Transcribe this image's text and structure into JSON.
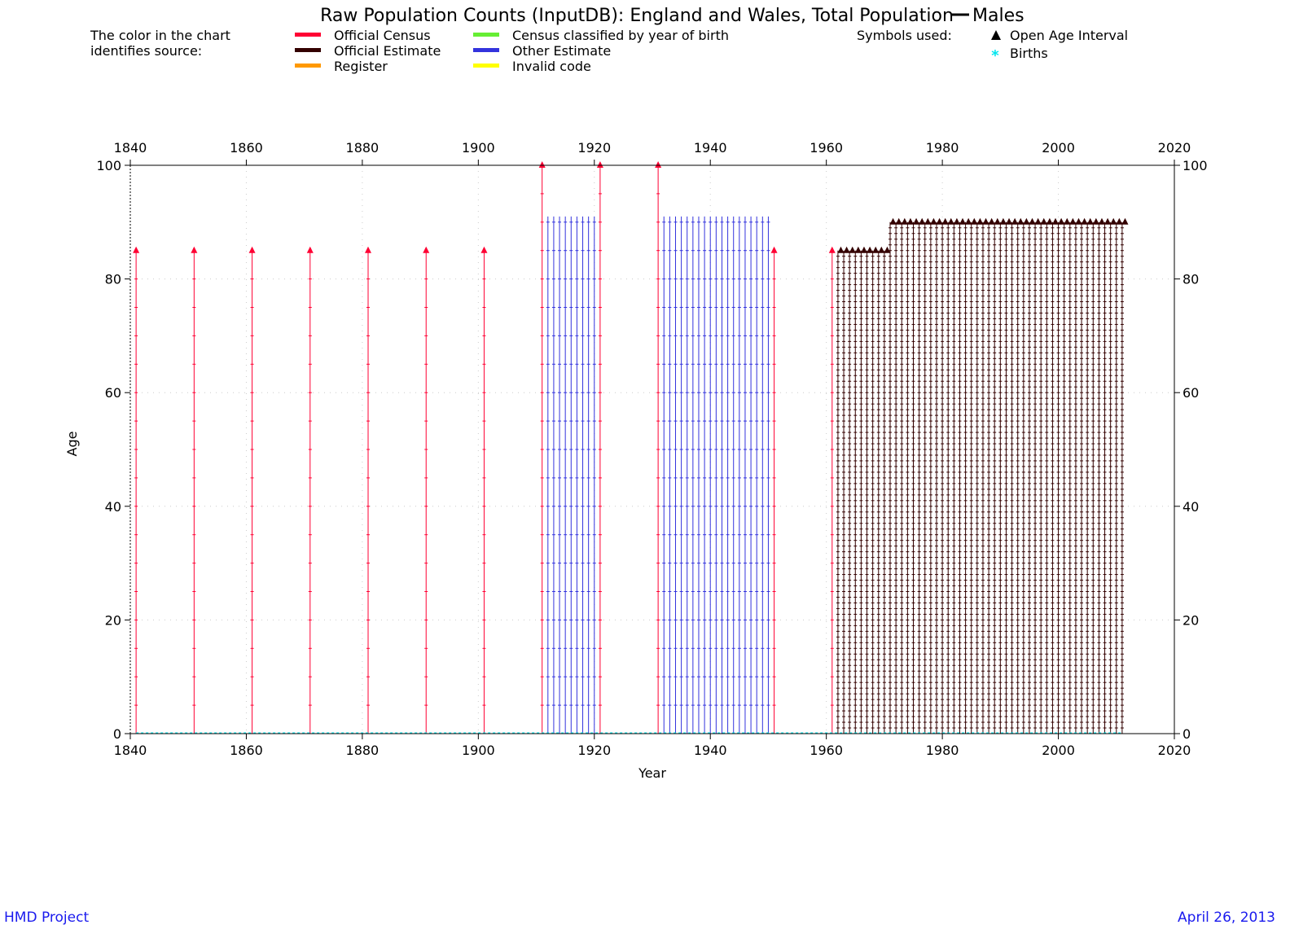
{
  "chart_data": {
    "type": "scatter",
    "title": "Raw Population Counts (InputDB): England and Wales, Total Population",
    "title_sex": "Males",
    "xlabel": "Year",
    "ylabel": "Age",
    "xlim": [
      1840,
      2020
    ],
    "ylim": [
      0,
      100
    ],
    "xticks": [
      1840,
      1860,
      1880,
      1900,
      1920,
      1940,
      1960,
      1980,
      2000,
      2020
    ],
    "yticks": [
      0,
      20,
      40,
      60,
      80,
      100
    ],
    "legend": {
      "heading": [
        "The color in the chart",
        "identifies source:"
      ],
      "sources": [
        {
          "label": "Official Census",
          "color": "#ff0033"
        },
        {
          "label": "Official Estimate",
          "color": "#330000"
        },
        {
          "label": "Register",
          "color": "#ff9900"
        },
        {
          "label": "Census classified by year of birth",
          "color": "#66ee33"
        },
        {
          "label": "Other Estimate",
          "color": "#3333dd"
        },
        {
          "label": "Invalid code",
          "color": "#ffff00"
        }
      ],
      "symbols_heading": "Symbols used:",
      "symbols": [
        {
          "label": "Open Age Interval",
          "icon": "triangle-icon",
          "color": "#000000"
        },
        {
          "label": "Births",
          "icon": "asterisk-icon",
          "color": "#00e5ee"
        }
      ]
    },
    "series": [
      {
        "name": "Official Census",
        "color": "#ff0033",
        "years": [
          1841,
          1851,
          1861,
          1871,
          1881,
          1891,
          1901,
          1911,
          1921,
          1931,
          1951,
          1961
        ],
        "open_age": [
          85,
          85,
          85,
          85,
          85,
          85,
          85,
          100,
          100,
          100,
          85,
          85
        ]
      },
      {
        "name": "Other Estimate",
        "color": "#3333dd",
        "year_ranges": [
          [
            1912,
            1920
          ],
          [
            1932,
            1950
          ]
        ],
        "max_age": 91
      },
      {
        "name": "Official Estimate",
        "color": "#330000",
        "year_ranges": [
          [
            1962,
            1970
          ],
          [
            1971,
            2011
          ]
        ],
        "open_age": [
          85,
          90
        ]
      },
      {
        "name": "Births",
        "color": "#00e5ee",
        "year_range": [
          1841,
          2011
        ],
        "age": 0
      }
    ]
  },
  "footer": {
    "left": "HMD Project",
    "right": "April 26, 2013"
  }
}
